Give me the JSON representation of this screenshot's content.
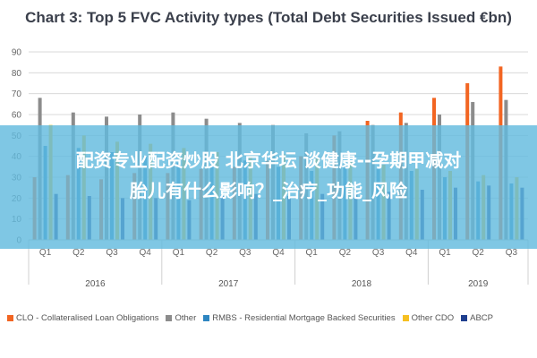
{
  "chart_data": {
    "type": "bar",
    "title": "Chart 3: Top 5 FVC Activity types (Total Debt Securities Issued €bn)",
    "xlabel": "",
    "ylabel": "",
    "ylim": [
      0,
      90
    ],
    "yticks": [
      0,
      10,
      20,
      30,
      40,
      50,
      60,
      70,
      80,
      90
    ],
    "grid": true,
    "legend_position": "bottom",
    "categories": [
      "Q1",
      "Q2",
      "Q3",
      "Q4",
      "Q1",
      "Q2",
      "Q3",
      "Q4",
      "Q1",
      "Q2",
      "Q3",
      "Q4",
      "Q1",
      "Q2",
      "Q3"
    ],
    "groups": [
      {
        "label": "2016",
        "count": 4
      },
      {
        "label": "2017",
        "count": 4
      },
      {
        "label": "2018",
        "count": 4
      },
      {
        "label": "2019",
        "count": 3
      }
    ],
    "series": [
      {
        "name": "CLO - Collateralised Loan Obligations",
        "color": "#f26522",
        "values": [
          30,
          31,
          29,
          32,
          32,
          34,
          35,
          38,
          40,
          50,
          57,
          61,
          68,
          75,
          83
        ]
      },
      {
        "name": "Other",
        "color": "#8c8c8c",
        "values": [
          68,
          61,
          59,
          60,
          61,
          58,
          56,
          55,
          51,
          52,
          55,
          56,
          60,
          66,
          67
        ]
      },
      {
        "name": "RMBS - Residential Mortgage Backed Securities",
        "color": "#2e86c1",
        "values": [
          45,
          44,
          42,
          40,
          37,
          36,
          38,
          35,
          33,
          36,
          34,
          33,
          30,
          28,
          27
        ]
      },
      {
        "name": "Other CDO",
        "color": "#f6c022",
        "values": [
          55,
          50,
          47,
          46,
          44,
          42,
          40,
          41,
          39,
          38,
          36,
          34,
          33,
          31,
          30
        ]
      },
      {
        "name": "ABCP",
        "color": "#1f3f8f",
        "values": [
          22,
          21,
          20,
          20,
          19,
          21,
          22,
          21,
          22,
          22,
          23,
          24,
          25,
          26,
          25
        ]
      }
    ]
  },
  "overlay": {
    "line1": "配资专业配资炒股 北京华坛 谈健康--孕期甲减对",
    "line2": "胎儿有什么影响？_治疗_功能_风险"
  }
}
